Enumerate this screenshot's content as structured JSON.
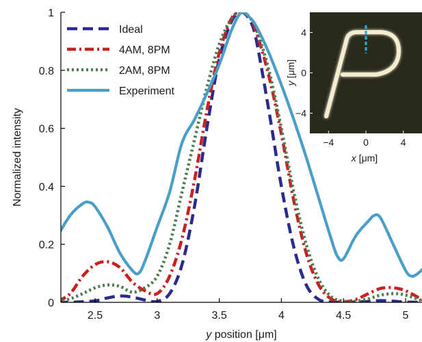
{
  "chart_data": {
    "type": "line",
    "xlabel_italic": "y",
    "xlabel_rest": " position [μm]",
    "ylabel": "Normalized intensity",
    "xlim": [
      2.2,
      5.15
    ],
    "ylim": [
      0,
      1
    ],
    "xticks": [
      2.5,
      3,
      3.5,
      4,
      4.5,
      5
    ],
    "xtick_labels": [
      "2.5",
      "3",
      "3.5",
      "4",
      "4.5",
      "5"
    ],
    "yticks": [
      0,
      0.2,
      0.4,
      0.6,
      0.8,
      1
    ],
    "ytick_labels": [
      "0",
      "0.2",
      "0.4",
      "0.6",
      "0.8",
      "1"
    ],
    "legend_position": "top-left",
    "series": [
      {
        "name": "Ideal",
        "color": "#2b2b8c",
        "style": "dashed",
        "x": [
          2.2,
          2.35,
          2.5,
          2.6,
          2.7,
          2.8,
          2.9,
          3.0,
          3.1,
          3.2,
          3.3,
          3.4,
          3.5,
          3.6,
          3.68,
          3.75,
          3.8,
          3.9,
          4.0,
          4.1,
          4.2,
          4.3,
          4.4,
          4.5,
          4.6,
          4.7,
          4.8,
          4.9,
          5.0,
          5.15
        ],
        "y": [
          0,
          0.001,
          0.005,
          0.015,
          0.022,
          0.018,
          0.008,
          0.003,
          0.03,
          0.13,
          0.33,
          0.6,
          0.84,
          0.97,
          1.0,
          0.97,
          0.9,
          0.66,
          0.4,
          0.19,
          0.06,
          0.01,
          0.001,
          0.0,
          0.001,
          0.003,
          0.006,
          0.004,
          0.001,
          0
        ]
      },
      {
        "name": "4AM, 8PM",
        "color": "#cc1f1f",
        "style": "dashdot",
        "x": [
          2.2,
          2.3,
          2.4,
          2.5,
          2.6,
          2.7,
          2.8,
          2.9,
          3.0,
          3.1,
          3.2,
          3.3,
          3.4,
          3.5,
          3.6,
          3.68,
          3.75,
          3.8,
          3.9,
          4.0,
          4.1,
          4.2,
          4.3,
          4.4,
          4.5,
          4.6,
          4.7,
          4.8,
          4.9,
          5.0,
          5.15
        ],
        "y": [
          0.003,
          0.03,
          0.09,
          0.13,
          0.14,
          0.12,
          0.07,
          0.04,
          0.03,
          0.09,
          0.22,
          0.42,
          0.66,
          0.86,
          0.98,
          1.0,
          0.98,
          0.93,
          0.78,
          0.58,
          0.35,
          0.17,
          0.06,
          0.012,
          0.002,
          0.01,
          0.03,
          0.048,
          0.05,
          0.04,
          0.005
        ]
      },
      {
        "name": "2AM, 8PM",
        "color": "#4f7a50",
        "style": "dotted",
        "x": [
          2.2,
          2.3,
          2.4,
          2.5,
          2.6,
          2.7,
          2.8,
          2.9,
          3.0,
          3.1,
          3.2,
          3.3,
          3.4,
          3.5,
          3.6,
          3.68,
          3.75,
          3.8,
          3.9,
          4.0,
          4.1,
          4.2,
          4.3,
          4.4,
          4.5,
          4.6,
          4.7,
          4.8,
          4.9,
          5.0,
          5.15
        ],
        "y": [
          0.002,
          0.012,
          0.03,
          0.05,
          0.06,
          0.055,
          0.035,
          0.05,
          0.09,
          0.2,
          0.38,
          0.56,
          0.74,
          0.89,
          0.98,
          1.0,
          0.98,
          0.94,
          0.8,
          0.6,
          0.38,
          0.2,
          0.08,
          0.02,
          0.004,
          0.004,
          0.012,
          0.025,
          0.03,
          0.025,
          0.003
        ]
      },
      {
        "name": "Experiment",
        "color": "#4a9fc8",
        "style": "solid",
        "x": [
          2.2,
          2.3,
          2.4,
          2.45,
          2.5,
          2.6,
          2.7,
          2.8,
          2.85,
          2.9,
          3.0,
          3.1,
          3.2,
          3.3,
          3.4,
          3.5,
          3.6,
          3.68,
          3.75,
          3.8,
          3.9,
          4.0,
          4.1,
          4.2,
          4.3,
          4.4,
          4.45,
          4.5,
          4.6,
          4.7,
          4.75,
          4.8,
          4.9,
          5.0,
          5.05,
          5.1,
          5.15
        ],
        "y": [
          0.23,
          0.3,
          0.34,
          0.345,
          0.33,
          0.26,
          0.17,
          0.11,
          0.1,
          0.14,
          0.26,
          0.38,
          0.55,
          0.63,
          0.72,
          0.82,
          0.94,
          1.0,
          0.98,
          0.95,
          0.86,
          0.75,
          0.63,
          0.5,
          0.36,
          0.22,
          0.16,
          0.15,
          0.23,
          0.28,
          0.3,
          0.29,
          0.2,
          0.11,
          0.09,
          0.1,
          0.12
        ]
      }
    ],
    "inset": {
      "xlabel_italic": "x",
      "xlabel_rest": " [μm]",
      "ylabel_italic": "y",
      "ylabel_rest": " [μm]",
      "xticks": [
        -4,
        0,
        4
      ],
      "xtick_labels": [
        "−4",
        "0",
        "4"
      ],
      "yticks": [
        4,
        0,
        -4
      ],
      "ytick_labels": [
        "4",
        "0",
        "−4"
      ],
      "xlim": [
        -6,
        6
      ],
      "ylim": [
        -6,
        6
      ],
      "background": "#2a2a1c",
      "letter_color": "#f4ecd0",
      "marker_color": "#2aa8e8"
    }
  }
}
